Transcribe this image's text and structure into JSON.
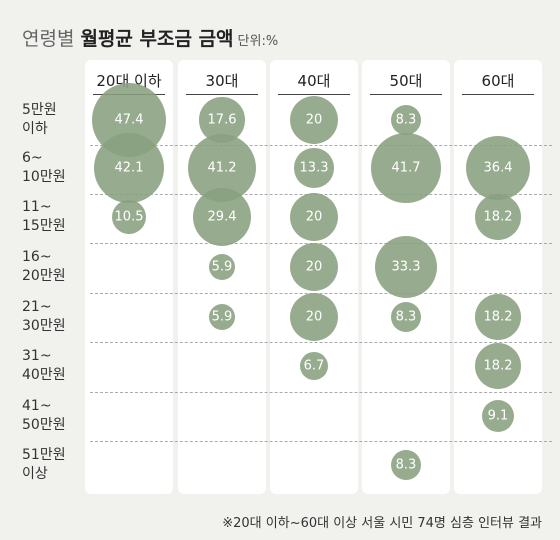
{
  "title": {
    "lead": "연령별",
    "bold": "월평균 부조금 금액",
    "unit": "단위:%"
  },
  "note": "※20대 이하~60대 이상 서울 시민 74명 심층 인터뷰 결과",
  "chart_data": {
    "type": "bubble",
    "columns": [
      "20대 이하",
      "30대",
      "40대",
      "50대",
      "60대"
    ],
    "rows": [
      {
        "lines": [
          "5만원",
          "이하"
        ]
      },
      {
        "lines": [
          "6~",
          "10만원"
        ]
      },
      {
        "lines": [
          "11~",
          "15만원"
        ]
      },
      {
        "lines": [
          "16~",
          "20만원"
        ]
      },
      {
        "lines": [
          "21~",
          "30만원"
        ]
      },
      {
        "lines": [
          "31~",
          "40만원"
        ]
      },
      {
        "lines": [
          "41~",
          "50만원"
        ]
      },
      {
        "lines": [
          "51만원",
          "이상"
        ]
      }
    ],
    "cells": [
      {
        "col": 0,
        "row": 0,
        "value": 47.4,
        "label": "47.4"
      },
      {
        "col": 0,
        "row": 1,
        "value": 42.1,
        "label": "42.1"
      },
      {
        "col": 0,
        "row": 2,
        "value": 10.5,
        "label": "10.5"
      },
      {
        "col": 1,
        "row": 0,
        "value": 17.6,
        "label": "17.6"
      },
      {
        "col": 1,
        "row": 1,
        "value": 41.2,
        "label": "41.2"
      },
      {
        "col": 1,
        "row": 2,
        "value": 29.4,
        "label": "29.4"
      },
      {
        "col": 1,
        "row": 3,
        "value": 5.9,
        "label": "5.9"
      },
      {
        "col": 1,
        "row": 4,
        "value": 5.9,
        "label": "5.9"
      },
      {
        "col": 2,
        "row": 0,
        "value": 20,
        "label": "20"
      },
      {
        "col": 2,
        "row": 1,
        "value": 13.3,
        "label": "13.3"
      },
      {
        "col": 2,
        "row": 2,
        "value": 20,
        "label": "20"
      },
      {
        "col": 2,
        "row": 3,
        "value": 20,
        "label": "20"
      },
      {
        "col": 2,
        "row": 4,
        "value": 20,
        "label": "20"
      },
      {
        "col": 2,
        "row": 5,
        "value": 6.7,
        "label": "6.7"
      },
      {
        "col": 3,
        "row": 0,
        "value": 8.3,
        "label": "8.3"
      },
      {
        "col": 3,
        "row": 1,
        "value": 41.7,
        "label": "41.7"
      },
      {
        "col": 3,
        "row": 3,
        "value": 33.3,
        "label": "33.3"
      },
      {
        "col": 3,
        "row": 4,
        "value": 8.3,
        "label": "8.3"
      },
      {
        "col": 3,
        "row": 7,
        "value": 8.3,
        "label": "8.3"
      },
      {
        "col": 4,
        "row": 1,
        "value": 36.4,
        "label": "36.4"
      },
      {
        "col": 4,
        "row": 2,
        "value": 18.2,
        "label": "18.2"
      },
      {
        "col": 4,
        "row": 4,
        "value": 18.2,
        "label": "18.2"
      },
      {
        "col": 4,
        "row": 5,
        "value": 18.2,
        "label": "18.2"
      },
      {
        "col": 4,
        "row": 6,
        "value": 9.1,
        "label": "9.1"
      }
    ],
    "bubble_color": "#89a07f",
    "panel_color": "#ffffff",
    "background_color": "#f1f1ee"
  }
}
